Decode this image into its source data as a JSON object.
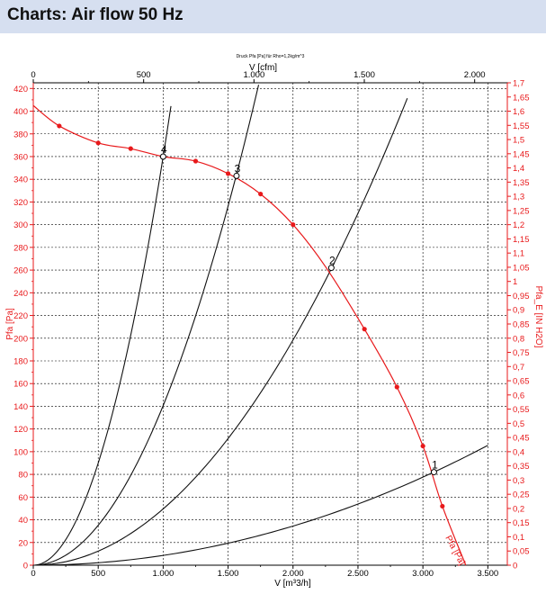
{
  "header": {
    "title": "Charts: Air flow 50 Hz"
  },
  "chart_data": {
    "type": "line",
    "caption": "Druck Pfa [Pa] für Rho=1,2kg/m^3",
    "x_bottom": {
      "label": "V [m³3/h]",
      "range": [
        0,
        3650
      ],
      "ticks": [
        0,
        500,
        1000,
        1500,
        2000,
        2500,
        3000,
        3500
      ],
      "tick_labels": [
        "0",
        "500",
        "1.000",
        "1.500",
        "2.000",
        "2.500",
        "3.000",
        "3.500"
      ]
    },
    "x_top": {
      "label": "V [cfm]",
      "range": [
        0,
        2148
      ],
      "ticks": [
        0,
        500,
        1000,
        1500,
        2000
      ],
      "tick_labels": [
        "0",
        "500",
        "1.000",
        "1.500",
        "2.000"
      ]
    },
    "y_left": {
      "label": "Pfa [Pa]",
      "range": [
        0,
        425
      ],
      "ticks": [
        0,
        20,
        40,
        60,
        80,
        100,
        120,
        140,
        160,
        180,
        200,
        220,
        240,
        260,
        280,
        300,
        320,
        340,
        360,
        380,
        400,
        420
      ]
    },
    "y_right": {
      "label": "Pfa_E [IN H2O]",
      "range": [
        0,
        1.7
      ],
      "ticks": [
        "0",
        "0,05",
        "0,1",
        "0,15",
        "0,2",
        "0,25",
        "0,3",
        "0,35",
        "0,4",
        "0,45",
        "0,5",
        "0,55",
        "0,6",
        "0,65",
        "0,7",
        "0,75",
        "0,8",
        "0,85",
        "0,9",
        "0,95",
        "1",
        "1,05",
        "1,1",
        "1,15",
        "1,2",
        "1,25",
        "1,3",
        "1,35",
        "1,4",
        "1,45",
        "1,5",
        "1,55",
        "1,6",
        "1,65",
        "1,7"
      ]
    },
    "grid": true,
    "fan_curve": {
      "name": "Pfa [Pa]",
      "color": "#e8191b",
      "x": [
        0,
        200,
        500,
        750,
        1000,
        1250,
        1500,
        1750,
        2000,
        2250,
        2550,
        2800,
        3000,
        3150,
        3330
      ],
      "y": [
        405,
        387,
        372,
        367,
        360,
        356,
        345,
        327,
        300,
        263,
        208,
        157,
        105,
        52,
        0
      ],
      "markers_x": [
        200,
        500,
        750,
        1250,
        1500,
        1750,
        2000,
        2550,
        2800,
        3000,
        3150
      ],
      "markers_y": [
        387,
        372,
        367,
        356,
        345,
        327,
        300,
        208,
        157,
        105,
        52
      ]
    },
    "system_curves": [
      {
        "label": "4",
        "k": 0.00036,
        "x_max": 1060,
        "op_x": 1000,
        "op_y": 360
      },
      {
        "label": "3",
        "k": 0.0001406,
        "x_max": 1735,
        "op_x": 1565,
        "op_y": 343
      },
      {
        "label": "2",
        "k": 4.96e-05,
        "x_max": 2880,
        "op_x": 2295,
        "op_y": 262
      },
      {
        "label": "1",
        "k": 8.62e-06,
        "x_max": 3500,
        "op_x": 3085,
        "op_y": 82
      }
    ]
  }
}
